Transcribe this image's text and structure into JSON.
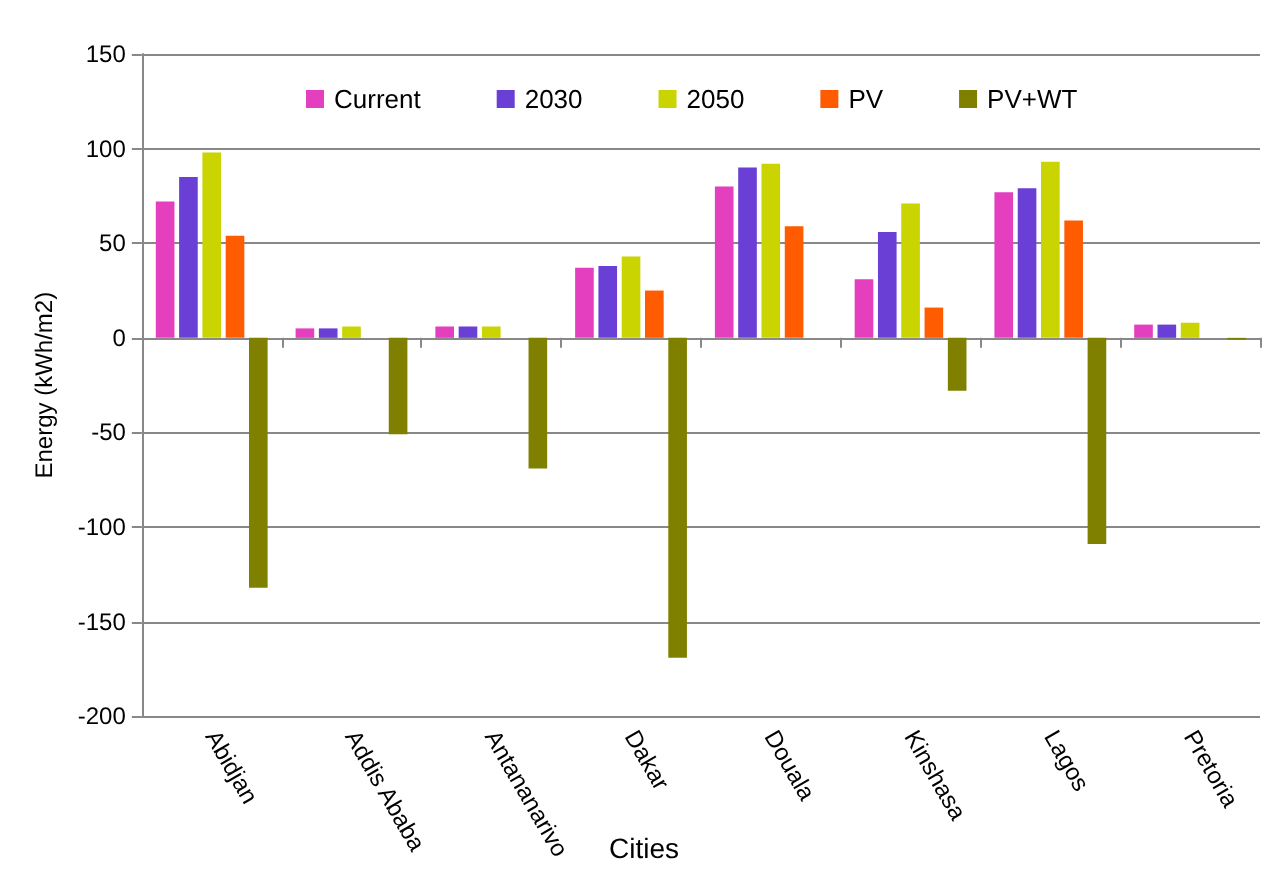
{
  "chart_data": {
    "type": "bar",
    "xlabel": "Cities",
    "ylabel": "Energy (kWh/m2)",
    "categories": [
      "Abidjan",
      "Addis Ababa",
      "Antananarivo",
      "Dakar",
      "Douala",
      "Kinshasa",
      "Lagos",
      "Pretoria"
    ],
    "series": [
      {
        "name": "Current",
        "color": "#e43fbf",
        "values": [
          72,
          5,
          6,
          37,
          80,
          31,
          77,
          7
        ]
      },
      {
        "name": "2030",
        "color": "#6a3fd6",
        "values": [
          85,
          5,
          6,
          38,
          90,
          56,
          79,
          7
        ]
      },
      {
        "name": "2050",
        "color": "#c9d400",
        "values": [
          98,
          6,
          6,
          43,
          92,
          71,
          93,
          8
        ]
      },
      {
        "name": "PV",
        "color": "#ff5b00",
        "values": [
          54,
          0,
          0,
          25,
          59,
          16,
          62,
          0
        ]
      },
      {
        "name": "PV+WT",
        "color": "#808000",
        "values": [
          -132,
          -51,
          -69,
          -169,
          0,
          -28,
          -109,
          -1
        ]
      }
    ],
    "ylim": [
      -200,
      150
    ],
    "yticks": [
      -200,
      -150,
      -100,
      -50,
      0,
      50,
      100,
      150
    ],
    "grid": "y",
    "legend": "top"
  }
}
